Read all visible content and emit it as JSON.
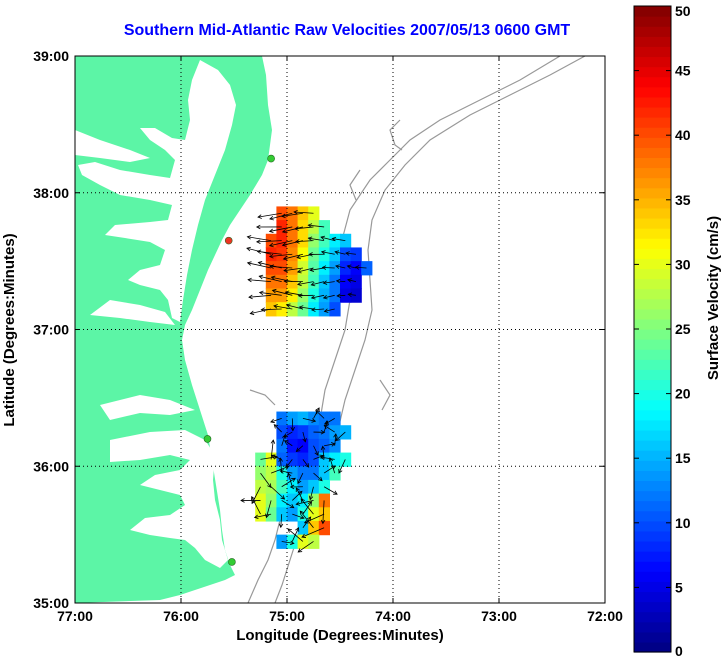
{
  "chart_data": {
    "type": "heatmap",
    "title": "Southern Mid-Atlantic Raw Velocities 2007/05/13 0600 GMT",
    "xlabel": "Longitude (Degrees:Minutes)",
    "ylabel": "Latitude (Degrees:Minutes)",
    "xlim": [
      -77,
      -72
    ],
    "ylim": [
      35,
      39
    ],
    "xticks": [
      -77,
      -76,
      -75,
      -74,
      -73,
      -72
    ],
    "xtick_labels": [
      "77:00",
      "76:00",
      "75:00",
      "74:00",
      "73:00",
      "72:00"
    ],
    "yticks": [
      35,
      36,
      37,
      38,
      39
    ],
    "ytick_labels": [
      "35:00",
      "36:00",
      "37:00",
      "38:00",
      "39:00"
    ],
    "grid": true,
    "colorbar": {
      "label": "Surface Velocity (cm/s)",
      "min": 0,
      "max": 50,
      "ticks": [
        0,
        5,
        10,
        15,
        20,
        25,
        30,
        35,
        40,
        45,
        50
      ],
      "colormap": "jet"
    },
    "colors": {
      "land": "#5cf5a6",
      "title": "#0000ff",
      "station_active": "#33cc33",
      "station_inactive": "#ee3322"
    },
    "stations": [
      {
        "lon": -75.15,
        "lat": 38.25,
        "status": "active"
      },
      {
        "lon": -75.55,
        "lat": 37.65,
        "status": "inactive"
      },
      {
        "lon": -75.75,
        "lat": 36.2,
        "status": "active"
      },
      {
        "lon": -75.52,
        "lat": 35.3,
        "status": "active"
      }
    ],
    "velocity_regions": [
      {
        "name": "northern",
        "rows": [
          {
            "lat": 37.8,
            "lon_start": -75.1,
            "lon_step": 0.1,
            "speeds": [
              40,
              38,
              34,
              30
            ]
          },
          {
            "lat": 37.7,
            "lon_start": -75.1,
            "lon_step": 0.1,
            "speeds": [
              42,
              38,
              33,
              28,
              22
            ]
          },
          {
            "lat": 37.6,
            "lon_start": -75.2,
            "lon_step": 0.1,
            "speeds": [
              40,
              42,
              38,
              33,
              26,
              22,
              18,
              16
            ]
          },
          {
            "lat": 37.5,
            "lon_start": -75.2,
            "lon_step": 0.1,
            "speeds": [
              42,
              41,
              37,
              31,
              24,
              20,
              16,
              10,
              9
            ]
          },
          {
            "lat": 37.4,
            "lon_start": -75.2,
            "lon_step": 0.1,
            "speeds": [
              40,
              40,
              36,
              29,
              23,
              18,
              14,
              8,
              6,
              11
            ]
          },
          {
            "lat": 37.3,
            "lon_start": -75.2,
            "lon_step": 0.1,
            "speeds": [
              38,
              38,
              34,
              28,
              22,
              16,
              12,
              6,
              5
            ]
          },
          {
            "lat": 37.2,
            "lon_start": -75.2,
            "lon_step": 0.1,
            "speeds": [
              36,
              36,
              32,
              26,
              20,
              15,
              12,
              5,
              4
            ]
          },
          {
            "lat": 37.1,
            "lon_start": -75.2,
            "lon_step": 0.1,
            "speeds": [
              34,
              32,
              28,
              24,
              18,
              14,
              10
            ]
          }
        ]
      },
      {
        "name": "southern",
        "rows": [
          {
            "lat": 36.3,
            "lon_start": -75.1,
            "lon_step": 0.1,
            "speeds": [
              12,
              14,
              15,
              13,
              12,
              12
            ]
          },
          {
            "lat": 36.2,
            "lon_start": -75.1,
            "lon_step": 0.1,
            "speeds": [
              10,
              8,
              9,
              11,
              12,
              14,
              15
            ]
          },
          {
            "lat": 36.1,
            "lon_start": -75.1,
            "lon_step": 0.1,
            "speeds": [
              12,
              7,
              6,
              10,
              11,
              13
            ]
          },
          {
            "lat": 36.0,
            "lon_start": -75.3,
            "lon_step": 0.1,
            "speeds": [
              24,
              30,
              11,
              9,
              8,
              10,
              16,
              18,
              20
            ]
          },
          {
            "lat": 35.9,
            "lon_start": -75.3,
            "lon_step": 0.1,
            "speeds": [
              26,
              28,
              20,
              14,
              12,
              12,
              16,
              22
            ]
          },
          {
            "lat": 35.8,
            "lon_start": -75.3,
            "lon_step": 0.1,
            "speeds": [
              28,
              27,
              22,
              18,
              14,
              16,
              20
            ]
          },
          {
            "lat": 35.7,
            "lon_start": -75.3,
            "lon_step": 0.1,
            "speeds": [
              30,
              26,
              18,
              16,
              18,
              26,
              38
            ]
          },
          {
            "lat": 35.6,
            "lon_start": -75.3,
            "lon_step": 0.1,
            "speeds": [
              30,
              24,
              16,
              14,
              20,
              30,
              34
            ]
          },
          {
            "lat": 35.5,
            "lon_start": -74.9,
            "lon_step": 0.1,
            "speeds": [
              16,
              34,
              40
            ]
          },
          {
            "lat": 35.4,
            "lon_start": -75.1,
            "lon_step": 0.1,
            "speeds": [
              14,
              20,
              30,
              28
            ]
          }
        ]
      }
    ]
  }
}
